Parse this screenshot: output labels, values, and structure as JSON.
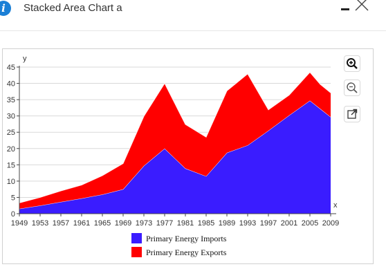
{
  "window": {
    "title": "Stacked Area Chart a"
  },
  "toolbar": {
    "zoom_in_icon": "zoom-in-icon",
    "zoom_out_icon": "zoom-out-icon",
    "popout_icon": "external-link-icon"
  },
  "chart_data": {
    "type": "area",
    "stacked": true,
    "xlabel": "x",
    "ylabel": "y",
    "xlim": [
      1949,
      2009
    ],
    "ylim": [
      0,
      45
    ],
    "x_ticks": [
      1949,
      1953,
      1957,
      1961,
      1965,
      1969,
      1973,
      1977,
      1981,
      1985,
      1989,
      1993,
      1997,
      2001,
      2005,
      2009
    ],
    "y_ticks": [
      0,
      5,
      10,
      15,
      20,
      25,
      30,
      35,
      40,
      45
    ],
    "grid": true,
    "legend_position": "bottom",
    "x": [
      1949,
      1953,
      1957,
      1961,
      1965,
      1969,
      1973,
      1977,
      1981,
      1985,
      1989,
      1993,
      1997,
      2001,
      2005,
      2007,
      2009
    ],
    "series": [
      {
        "name": "Primary Energy Imports",
        "color": "#3a1cff",
        "values": [
          1.5,
          2.5,
          3.6,
          4.7,
          5.9,
          7.5,
          14.7,
          20.0,
          13.9,
          11.5,
          18.7,
          21.0,
          25.5,
          30.2,
          34.7,
          32.2,
          29.7
        ]
      },
      {
        "name": "Primary Energy Exports",
        "color": "#ff0000",
        "values": [
          1.8,
          2.5,
          3.4,
          4.1,
          5.8,
          7.9,
          15.2,
          20.0,
          13.5,
          12.0,
          19.0,
          21.9,
          6.4,
          6.2,
          8.7,
          7.5,
          7.4
        ]
      }
    ]
  }
}
